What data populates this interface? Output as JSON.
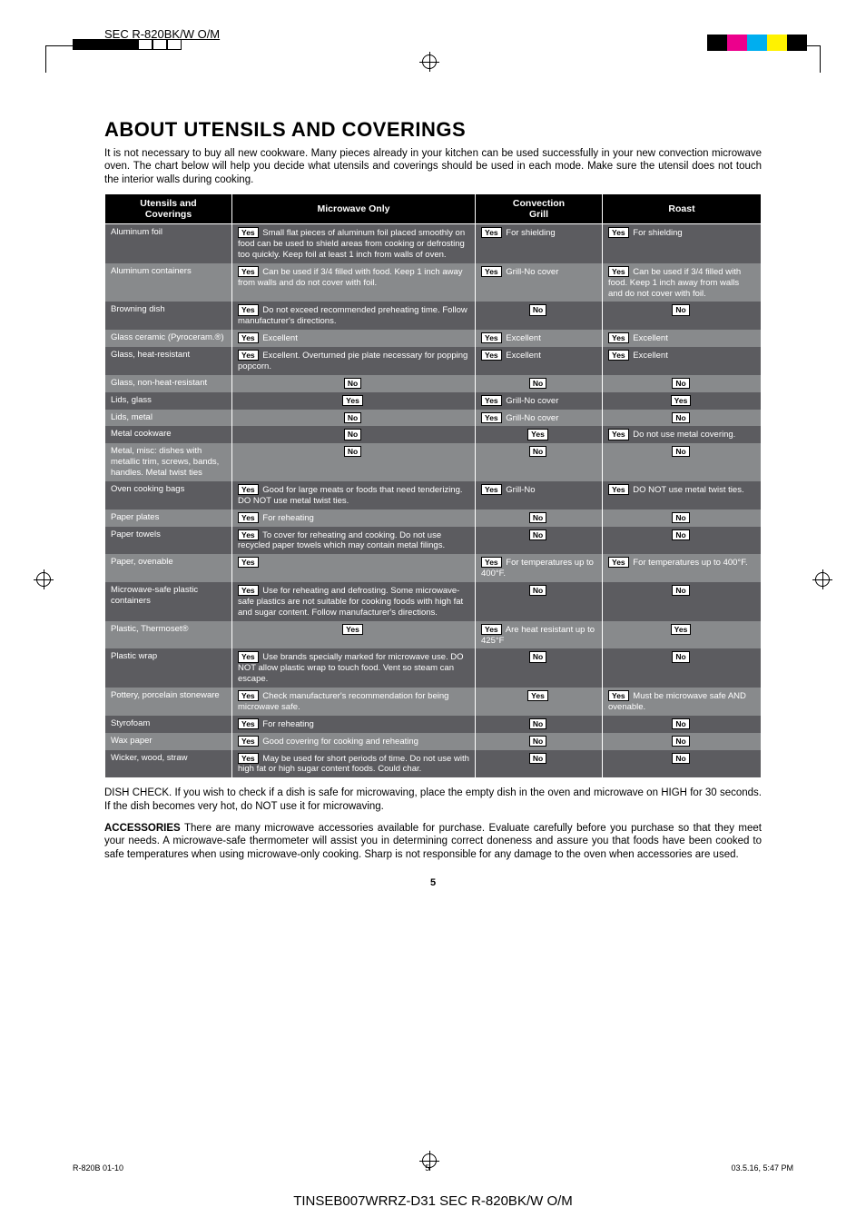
{
  "header": {
    "label": "SEC R-820BK/W O/M",
    "color_bars": [
      "#000000",
      "#ec008c",
      "#00aeef",
      "#fff200",
      "#000000"
    ]
  },
  "title": "ABOUT UTENSILS AND COVERINGS",
  "intro": "It is not necessary to buy all new cookware. Many pieces already in your kitchen can be used successfully in your new convection microwave oven. The chart below will help you decide what utensils and coverings should be used in each mode. Make sure the utensil does not touch the interior walls during cooking.",
  "columns": {
    "c1a": "Utensils and",
    "c1b": "Coverings",
    "c2": "Microwave Only",
    "c3a": "Convection",
    "c3b": "Grill",
    "c4": "Roast"
  },
  "rows": [
    {
      "rc": "odd",
      "name": "Aluminum foil",
      "mw": {
        "b": "Yes",
        "t": "Small flat pieces of aluminum foil placed smoothly on food can be used to shield areas from cooking or defrosting too quickly. Keep foil at least 1 inch from walls of oven.",
        "a": ""
      },
      "cg": {
        "b": "Yes",
        "t": "For shielding",
        "a": ""
      },
      "r": {
        "b": "Yes",
        "t": "For shielding",
        "a": ""
      }
    },
    {
      "rc": "even",
      "name": "Aluminum containers",
      "mw": {
        "b": "Yes",
        "t": "Can be used if 3/4 filled with food. Keep 1 inch away from walls and do not cover with foil.",
        "a": ""
      },
      "cg": {
        "b": "Yes",
        "t": "Grill-No cover",
        "a": ""
      },
      "r": {
        "b": "Yes",
        "t": "Can be used if 3/4 filled with food. Keep 1 inch away from walls and do not cover with foil.",
        "a": ""
      }
    },
    {
      "rc": "odd",
      "name": "Browning dish",
      "mw": {
        "b": "Yes",
        "t": "Do not exceed recommended preheating time. Follow manufacturer's directions.",
        "a": ""
      },
      "cg": {
        "b": "No",
        "t": "",
        "a": "c"
      },
      "r": {
        "b": "No",
        "t": "",
        "a": "c"
      }
    },
    {
      "rc": "even",
      "name": "Glass ceramic (Pyroceram.®)",
      "mw": {
        "b": "Yes",
        "t": "Excellent",
        "a": ""
      },
      "cg": {
        "b": "Yes",
        "t": "Excellent",
        "a": ""
      },
      "r": {
        "b": "Yes",
        "t": "Excellent",
        "a": ""
      }
    },
    {
      "rc": "odd",
      "name": "Glass, heat-resistant",
      "mw": {
        "b": "Yes",
        "t": "Excellent. Overturned pie plate necessary for popping popcorn.",
        "a": ""
      },
      "cg": {
        "b": "Yes",
        "t": "Excellent",
        "a": ""
      },
      "r": {
        "b": "Yes",
        "t": "Excellent",
        "a": ""
      }
    },
    {
      "rc": "even",
      "name": "Glass, non-heat-resistant",
      "mw": {
        "b": "No",
        "t": "",
        "a": "c"
      },
      "cg": {
        "b": "No",
        "t": "",
        "a": "c"
      },
      "r": {
        "b": "No",
        "t": "",
        "a": "c"
      }
    },
    {
      "rc": "odd",
      "name": "Lids, glass",
      "mw": {
        "b": "Yes",
        "t": "",
        "a": "c"
      },
      "cg": {
        "b": "Yes",
        "t": "Grill-No cover",
        "a": ""
      },
      "r": {
        "b": "Yes",
        "t": "",
        "a": "c"
      }
    },
    {
      "rc": "even",
      "name": "Lids, metal",
      "mw": {
        "b": "No",
        "t": "",
        "a": "c"
      },
      "cg": {
        "b": "Yes",
        "t": "Grill-No cover",
        "a": ""
      },
      "r": {
        "b": "No",
        "t": "",
        "a": "c"
      }
    },
    {
      "rc": "odd",
      "name": "Metal cookware",
      "mw": {
        "b": "No",
        "t": "",
        "a": "c"
      },
      "cg": {
        "b": "Yes",
        "t": "",
        "a": "c"
      },
      "r": {
        "b": "Yes",
        "t": "Do not use metal covering.",
        "a": ""
      }
    },
    {
      "rc": "even",
      "name": "Metal, misc: dishes with metallic trim, screws, bands, handles. Metal twist ties",
      "mw": {
        "b": "No",
        "t": "",
        "a": "c"
      },
      "cg": {
        "b": "No",
        "t": "",
        "a": "c"
      },
      "r": {
        "b": "No",
        "t": "",
        "a": "c"
      }
    },
    {
      "rc": "odd",
      "name": "Oven cooking bags",
      "mw": {
        "b": "Yes",
        "t": "Good for large meats or foods that need tenderizing. DO NOT use metal twist ties.",
        "a": ""
      },
      "cg": {
        "b": "Yes",
        "t": "Grill-No",
        "a": ""
      },
      "r": {
        "b": "Yes",
        "t": "DO NOT use metal twist ties.",
        "a": ""
      }
    },
    {
      "rc": "even",
      "name": "Paper plates",
      "mw": {
        "b": "Yes",
        "t": "For reheating",
        "a": ""
      },
      "cg": {
        "b": "No",
        "t": "",
        "a": "c"
      },
      "r": {
        "b": "No",
        "t": "",
        "a": "c"
      }
    },
    {
      "rc": "odd",
      "name": "Paper towels",
      "mw": {
        "b": "Yes",
        "t": "To cover for reheating and cooking. Do not use recycled paper towels which may contain metal filings.",
        "a": ""
      },
      "cg": {
        "b": "No",
        "t": "",
        "a": "c"
      },
      "r": {
        "b": "No",
        "t": "",
        "a": "c"
      }
    },
    {
      "rc": "even",
      "name": "Paper, ovenable",
      "mw": {
        "b": "Yes",
        "t": "",
        "a": ""
      },
      "cg": {
        "b": "Yes",
        "t": "For temperatures up to 400°F.",
        "a": ""
      },
      "r": {
        "b": "Yes",
        "t": "For temperatures up to 400°F.",
        "a": ""
      }
    },
    {
      "rc": "odd",
      "name": "Microwave-safe plastic containers",
      "mw": {
        "b": "Yes",
        "t": "Use for reheating and defrosting. Some microwave-safe plastics are not suitable for cooking foods with high fat and sugar content. Follow manufacturer's directions.",
        "a": ""
      },
      "cg": {
        "b": "No",
        "t": "",
        "a": "c"
      },
      "r": {
        "b": "No",
        "t": "",
        "a": "c"
      }
    },
    {
      "rc": "even",
      "name": "Plastic, Thermoset®",
      "mw": {
        "b": "Yes",
        "t": "",
        "a": "c"
      },
      "cg": {
        "b": "Yes",
        "t": "Are heat resistant up to 425°F",
        "a": ""
      },
      "r": {
        "b": "Yes",
        "t": "",
        "a": "c"
      }
    },
    {
      "rc": "odd",
      "name": "Plastic wrap",
      "mw": {
        "b": "Yes",
        "t": "Use brands specially marked for microwave use. DO NOT allow plastic wrap to touch food. Vent so steam can escape.",
        "a": ""
      },
      "cg": {
        "b": "No",
        "t": "",
        "a": "c"
      },
      "r": {
        "b": "No",
        "t": "",
        "a": "c"
      }
    },
    {
      "rc": "even",
      "name": "Pottery, porcelain stoneware",
      "mw": {
        "b": "Yes",
        "t": "Check manufacturer's recommendation for being microwave safe.",
        "a": ""
      },
      "cg": {
        "b": "Yes",
        "t": "",
        "a": "c"
      },
      "r": {
        "b": "Yes",
        "t": "Must be microwave safe AND ovenable.",
        "a": ""
      }
    },
    {
      "rc": "odd",
      "name": "Styrofoam",
      "mw": {
        "b": "Yes",
        "t": "For reheating",
        "a": ""
      },
      "cg": {
        "b": "No",
        "t": "",
        "a": "c"
      },
      "r": {
        "b": "No",
        "t": "",
        "a": "c"
      }
    },
    {
      "rc": "even",
      "name": "Wax paper",
      "mw": {
        "b": "Yes",
        "t": "Good covering for cooking and reheating",
        "a": ""
      },
      "cg": {
        "b": "No",
        "t": "",
        "a": "c"
      },
      "r": {
        "b": "No",
        "t": "",
        "a": "c"
      }
    },
    {
      "rc": "odd",
      "name": "Wicker, wood, straw",
      "mw": {
        "b": "Yes",
        "t": "May be used for short periods of time. Do not use with high fat or high sugar content foods. Could char.",
        "a": ""
      },
      "cg": {
        "b": "No",
        "t": "",
        "a": "c"
      },
      "r": {
        "b": "No",
        "t": "",
        "a": "c"
      }
    }
  ],
  "foot1": "DISH CHECK. If you wish to check if a dish is safe for microwaving, place the empty dish in the oven and microwave on HIGH for 30 seconds. If the dish becomes very hot, do NOT use it for microwaving.",
  "foot2_bold": "ACCESSORIES",
  "foot2": " There are many microwave accessories available for purchase. Evaluate carefully before you purchase so that they meet your needs. A microwave-safe thermometer will assist you in determining correct doneness and assure you that foods have been cooked to safe temperatures when using microwave-only cooking. Sharp is not responsible for any damage to the oven when accessories are used.",
  "page_num": "5",
  "bottom": {
    "left": "R-820B 01-10",
    "mid": "5",
    "right": "03.5.16, 5:47 PM"
  },
  "footer": "TINSEB007WRRZ-D31 SEC R-820BK/W O/M"
}
